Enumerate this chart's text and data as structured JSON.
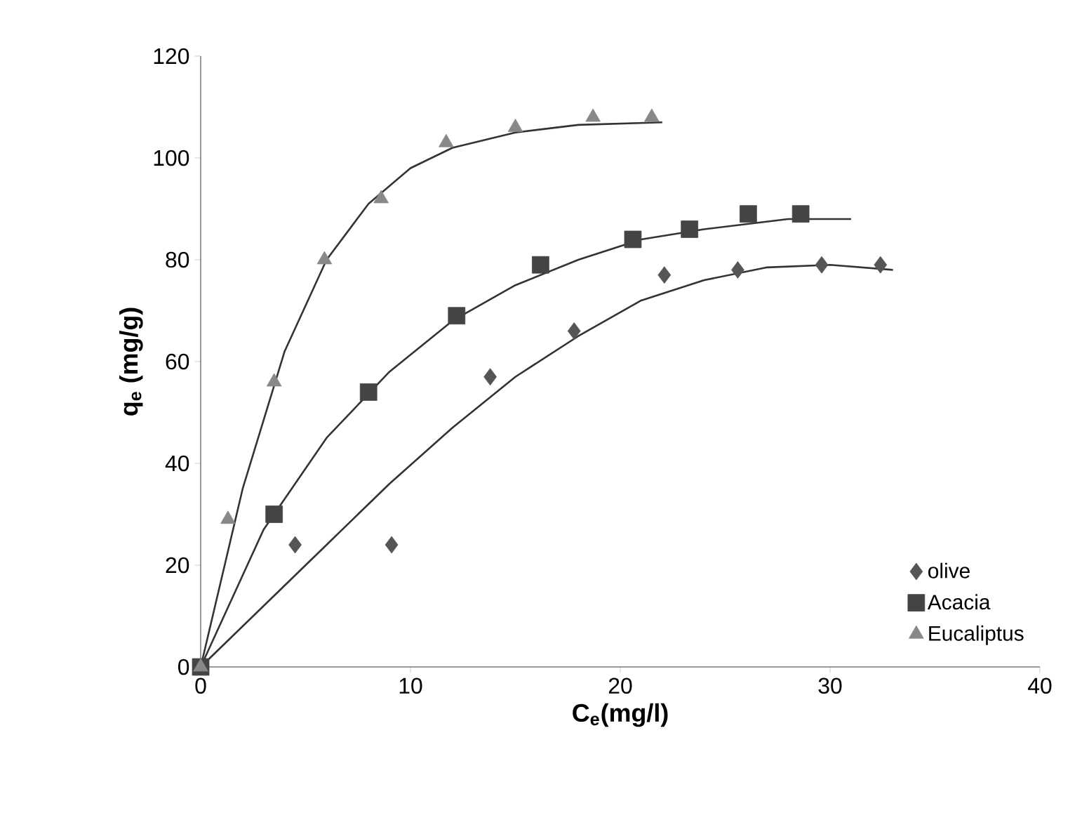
{
  "chart_data": {
    "type": "scatter",
    "xlabel": "C$_{e}$(mg/l)",
    "ylabel": "q$_{e}$ (mg/g)",
    "xlim": [
      0,
      40
    ],
    "ylim": [
      0,
      120
    ],
    "xticks": [
      0,
      10,
      20,
      30,
      40
    ],
    "yticks": [
      0,
      20,
      40,
      60,
      80,
      100,
      120
    ],
    "grid": false,
    "legend": "bottom right",
    "series": [
      {
        "name": "olive",
        "color": "#555555",
        "marker": "diamond",
        "x": [
          4.5,
          9.1,
          13.8,
          17.8,
          22.1,
          25.6,
          29.6,
          32.4
        ],
        "values": [
          24,
          24,
          57,
          66,
          77,
          78,
          79,
          79
        ]
      },
      {
        "name": "Acacia",
        "color": "#444444",
        "marker": "square",
        "x": [
          0,
          3.5,
          8,
          12.2,
          16.2,
          20.6,
          23.3,
          26.1,
          28.6
        ],
        "values": [
          0,
          30,
          54,
          69,
          79,
          84,
          86,
          89,
          89
        ]
      },
      {
        "name": "Eucaliptus",
        "color": "#888888",
        "marker": "triangle",
        "x": [
          0,
          1.3,
          3.5,
          5.9,
          8.6,
          11.7,
          15,
          18.7,
          21.5
        ],
        "values": [
          0,
          29,
          56,
          80,
          92,
          103,
          106,
          108,
          108
        ]
      },
      {
        "type": "line",
        "color": "#333333",
        "marker": "none",
        "x": [
          0,
          3,
          6,
          9,
          12,
          15,
          18,
          21,
          24,
          27,
          30,
          33
        ],
        "values": [
          0,
          12,
          24,
          36,
          47,
          57,
          65,
          72,
          76,
          78.5,
          79,
          78
        ]
      },
      {
        "type": "line",
        "color": "#333333",
        "marker": "none",
        "x": [
          0,
          3,
          6,
          9,
          12,
          15,
          18,
          21,
          24,
          28,
          31
        ],
        "values": [
          0,
          27,
          45,
          58,
          68,
          75,
          80,
          84,
          86,
          88,
          88
        ]
      },
      {
        "type": "line",
        "color": "#333333",
        "marker": "none",
        "x": [
          0,
          2,
          4,
          6,
          8,
          10,
          12,
          15,
          18,
          22
        ],
        "values": [
          0,
          35,
          62,
          80,
          91,
          98,
          102,
          105,
          106.5,
          107
        ]
      }
    ]
  }
}
